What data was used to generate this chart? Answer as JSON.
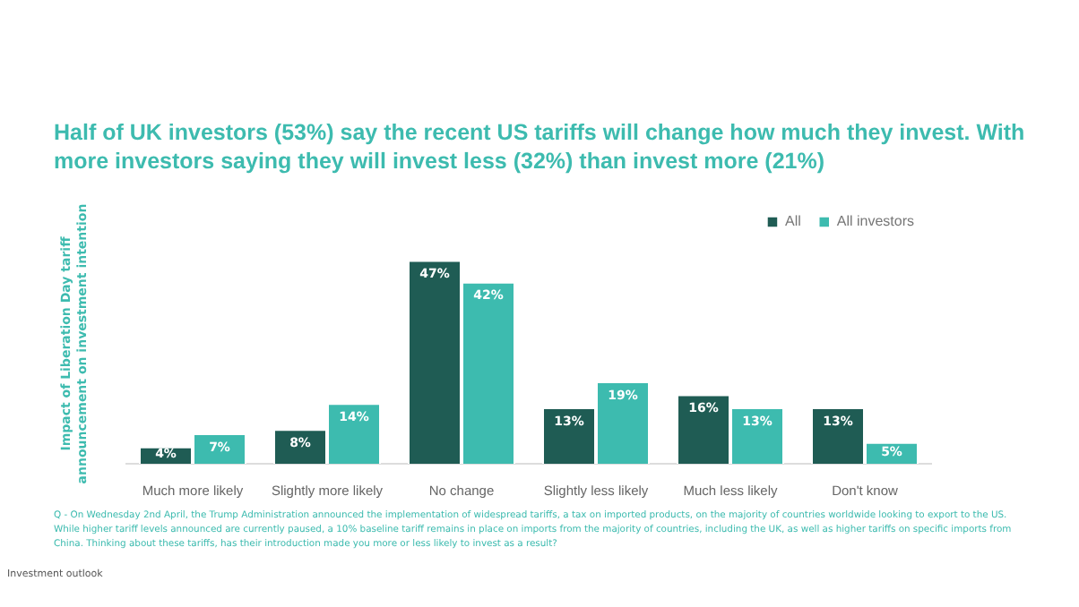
{
  "chart_data": {
    "type": "bar",
    "title": "Half of UK investors (53%) say the recent US tariffs will change how much they invest. With more investors saying they will invest less (32%) than invest more (21%)",
    "ylabel": "Impact of Liberation Day tariff announcement on investment intention",
    "categories": [
      "Much more likely",
      "Slightly more likely",
      "No change",
      "Slightly less likely",
      "Much less likely",
      "Don't know"
    ],
    "series": [
      {
        "name": "All",
        "color": "#1f5c54",
        "values": [
          4,
          8,
          47,
          13,
          16,
          13
        ],
        "value_labels": [
          "4%",
          "8%",
          "47%",
          "13%",
          "16%",
          "13%"
        ]
      },
      {
        "name": "All investors",
        "color": "#3dbbaf",
        "values": [
          7,
          14,
          42,
          19,
          13,
          5
        ],
        "value_labels": [
          "7%",
          "14%",
          "42%",
          "19%",
          "13%",
          "5%"
        ]
      }
    ],
    "grid": false,
    "legend": "top right",
    "tick_labels": "x",
    "annotations": [
      "Q - On Wednesday 2nd April, the Trump Administration announced the implementation of widespread tariffs, a tax on imported products, on the majority of countries worldwide looking to export to the US. While higher tariff levels announced are currently paused, a 10% baseline tariff remains in place on imports from the majority of countries, including the UK, as well as higher tariffs on specific imports from China. Thinking about these tariffs, has their introduction made you more or less likely to invest as a result?",
      "Investment outlook"
    ]
  }
}
